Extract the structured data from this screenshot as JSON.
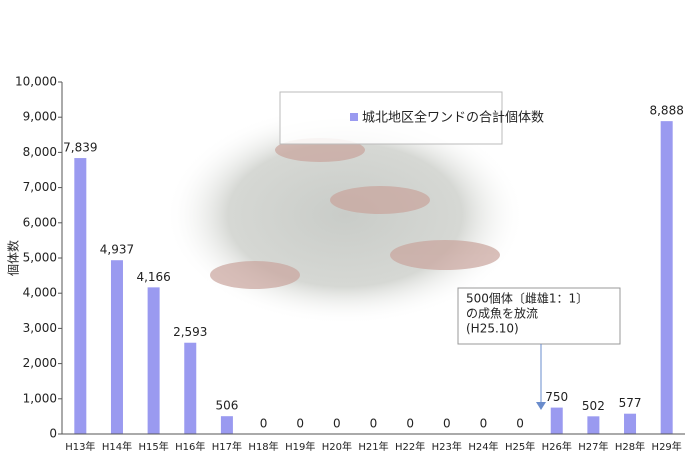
{
  "chart_data": {
    "type": "bar",
    "y_label": "個体数",
    "legend": "城北地区全ワンドの合計個体数",
    "annotation": [
      "500個体〔雌雄1：1〕",
      "の成魚を放流",
      "(H25.10)"
    ],
    "categories": [
      "H13年",
      "H14年",
      "H15年",
      "H16年",
      "H17年",
      "H18年",
      "H19年",
      "H20年",
      "H21年",
      "H22年",
      "H23年",
      "H24年",
      "H25年",
      "H26年",
      "H27年",
      "H28年",
      "H29年"
    ],
    "values": [
      7839,
      4937,
      4166,
      2593,
      506,
      0,
      0,
      0,
      0,
      0,
      0,
      0,
      0,
      750,
      502,
      577,
      8888
    ],
    "value_labels": [
      "7,839",
      "4,937",
      "4,166",
      "2,593",
      "506",
      "0",
      "0",
      "0",
      "0",
      "0",
      "0",
      "0",
      "0",
      "750",
      "502",
      "577",
      "8,888"
    ],
    "color": "#9a9af0",
    "ylim": [
      0,
      10000
    ],
    "yticks": [
      0,
      {
        "value": 1000,
        "label": "1,000"
      },
      {
        "value": 2000,
        "label": "2,000"
      },
      {
        "value": 3000,
        "label": "3,000"
      },
      {
        "value": 4000,
        "label": "4,000"
      },
      {
        "value": 5000,
        "label": "5,000"
      },
      {
        "value": 6000,
        "label": "6,000"
      },
      {
        "value": 7000,
        "label": "7,000"
      },
      {
        "value": 8000,
        "label": "8,000"
      },
      {
        "value": 9000,
        "label": "9,000"
      },
      {
        "value": 10000,
        "label": "10,000"
      }
    ]
  }
}
